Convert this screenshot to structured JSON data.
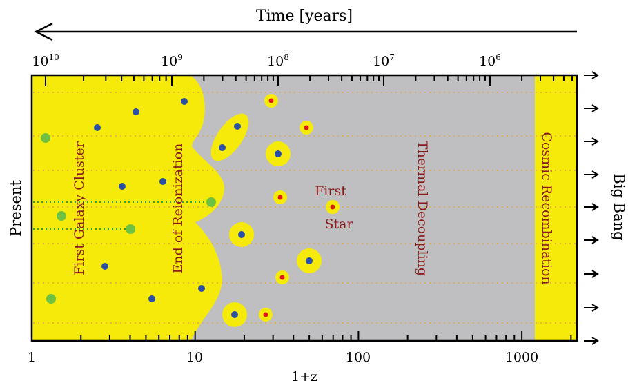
{
  "header": {
    "time_label": "Time [years]"
  },
  "side": {
    "left": "Present",
    "right": "Big Bang"
  },
  "top_axis": {
    "ticks": [
      {
        "base": "10",
        "exp": "10",
        "z": 1
      },
      {
        "base": "10",
        "exp": "9",
        "z": 9
      },
      {
        "base": "10",
        "exp": "8",
        "z": 29
      },
      {
        "base": "10",
        "exp": "7",
        "z": 100
      },
      {
        "base": "10",
        "exp": "6",
        "z": 340
      }
    ]
  },
  "bottom_axis": {
    "label": "1+z",
    "ticks": [
      {
        "label": "1",
        "z": 1
      },
      {
        "label": "10",
        "z": 10
      },
      {
        "label": "100",
        "z": 100
      },
      {
        "label": "1000",
        "z": 1000
      }
    ]
  },
  "labels": {
    "first_galaxy_cluster": "First Galaxy Cluster",
    "end_of_reionization": "End of Reionization",
    "thermal_decoupling": "Thermal Decoupling",
    "cosmic_recombination": "Cosmic Recombination",
    "first_star_line1": "First",
    "first_star_line2": "Star"
  },
  "colors": {
    "yellow": "#f5ea0a",
    "gray": "#bfbfc1",
    "blue": "#2b4fa8",
    "green": "#6fc241",
    "red": "#e01919",
    "label": "#8b1a1a",
    "dotted": "#e0a84a"
  }
}
